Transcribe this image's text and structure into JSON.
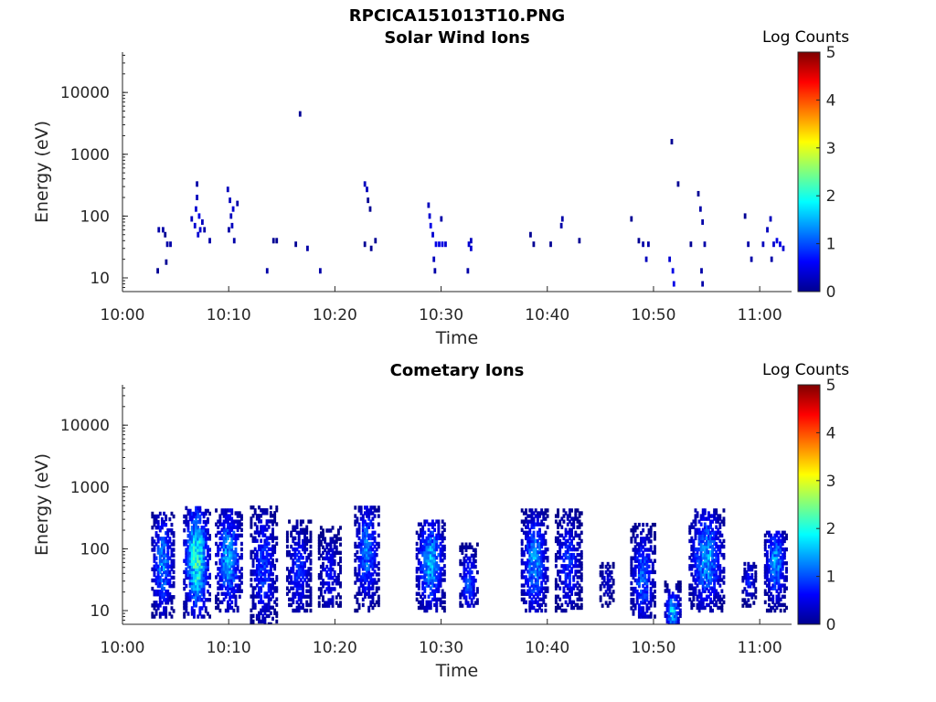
{
  "figure_title": "RPCICA151013T10.PNG",
  "chart_data": [
    {
      "type": "heatmap",
      "title": "Solar Wind Ions",
      "xlabel": "Time",
      "ylabel": "Energy (eV)",
      "x_ticks": [
        "10:00",
        "10:10",
        "10:20",
        "10:30",
        "10:40",
        "10:50",
        "11:00"
      ],
      "y_ticks": [
        "10",
        "100",
        "1000",
        "10000"
      ],
      "y_scale": "log",
      "ylim": [
        6,
        45000
      ],
      "xlim_minutes": [
        0,
        63
      ],
      "colorbar": {
        "label": "Log Counts",
        "range": [
          0,
          5
        ],
        "ticks": [
          "0",
          "1",
          "2",
          "3",
          "4",
          "5"
        ],
        "colormap": "jet"
      },
      "note": "sparse low counts (~0-0.5) scattered 10:03-11:02, mostly 10-300 eV",
      "cells": [
        [
          3.3,
          13,
          0.1
        ],
        [
          3.4,
          60,
          0.2
        ],
        [
          3.8,
          60,
          0.2
        ],
        [
          4.0,
          50,
          0.1
        ],
        [
          4.1,
          18,
          0.1
        ],
        [
          4.2,
          35,
          0.2
        ],
        [
          4.5,
          35,
          0.2
        ],
        [
          6.5,
          90,
          0.3
        ],
        [
          6.8,
          70,
          0.4
        ],
        [
          6.9,
          130,
          0.4
        ],
        [
          7.0,
          200,
          0.3
        ],
        [
          7.1,
          50,
          0.4
        ],
        [
          7.2,
          100,
          0.5
        ],
        [
          7.3,
          60,
          0.4
        ],
        [
          7.5,
          80,
          0.3
        ],
        [
          7.7,
          60,
          0.2
        ],
        [
          7.0,
          330,
          0.2
        ],
        [
          8.2,
          40,
          0.2
        ],
        [
          9.9,
          270,
          0.3
        ],
        [
          10.1,
          180,
          0.3
        ],
        [
          10.2,
          100,
          0.3
        ],
        [
          10.4,
          130,
          0.4
        ],
        [
          10.3,
          70,
          0.3
        ],
        [
          10.5,
          40,
          0.2
        ],
        [
          10.8,
          160,
          0.2
        ],
        [
          10.0,
          60,
          0.2
        ],
        [
          13.6,
          13,
          0.2
        ],
        [
          14.2,
          40,
          0.1
        ],
        [
          14.5,
          40,
          0.1
        ],
        [
          16.7,
          4500,
          0.1
        ],
        [
          16.3,
          35,
          0.1
        ],
        [
          17.4,
          30,
          0.2
        ],
        [
          18.6,
          13,
          0.2
        ],
        [
          22.8,
          330,
          0.3
        ],
        [
          23.0,
          270,
          0.3
        ],
        [
          23.1,
          180,
          0.1
        ],
        [
          23.3,
          130,
          0.1
        ],
        [
          22.8,
          35,
          0.1
        ],
        [
          23.4,
          30,
          0.1
        ],
        [
          23.8,
          40,
          0.1
        ],
        [
          28.8,
          150,
          0.3
        ],
        [
          28.9,
          100,
          0.4
        ],
        [
          29.0,
          70,
          0.5
        ],
        [
          29.2,
          50,
          0.4
        ],
        [
          29.5,
          35,
          0.5
        ],
        [
          29.8,
          35,
          0.5
        ],
        [
          30.1,
          35,
          0.5
        ],
        [
          30.4,
          35,
          0.4
        ],
        [
          29.3,
          20,
          0.3
        ],
        [
          29.4,
          13,
          0.2
        ],
        [
          30.0,
          90,
          0.2
        ],
        [
          32.6,
          35,
          0.4
        ],
        [
          32.8,
          30,
          0.4
        ],
        [
          32.5,
          13,
          0.2
        ],
        [
          32.8,
          40,
          0.3
        ],
        [
          38.4,
          50,
          0.1
        ],
        [
          38.7,
          35,
          0.1
        ],
        [
          40.3,
          35,
          0.1
        ],
        [
          41.3,
          70,
          0.2
        ],
        [
          41.4,
          90,
          0.2
        ],
        [
          43.0,
          40,
          0.1
        ],
        [
          47.9,
          90,
          0.1
        ],
        [
          48.6,
          40,
          0.1
        ],
        [
          49.0,
          35,
          0.2
        ],
        [
          49.3,
          20,
          0.3
        ],
        [
          49.5,
          35,
          0.2
        ],
        [
          51.5,
          20,
          0.4
        ],
        [
          51.8,
          13,
          0.5
        ],
        [
          51.9,
          8,
          0.5
        ],
        [
          51.7,
          1600,
          0.1
        ],
        [
          52.3,
          330,
          0.1
        ],
        [
          53.5,
          35,
          0.1
        ],
        [
          54.2,
          230,
          0.1
        ],
        [
          54.4,
          130,
          0.2
        ],
        [
          54.6,
          80,
          0.2
        ],
        [
          54.8,
          35,
          0.2
        ],
        [
          54.5,
          13,
          0.2
        ],
        [
          54.6,
          8,
          0.2
        ],
        [
          58.6,
          100,
          0.1
        ],
        [
          58.9,
          35,
          0.2
        ],
        [
          59.2,
          20,
          0.2
        ],
        [
          60.3,
          35,
          0.3
        ],
        [
          60.7,
          60,
          0.3
        ],
        [
          61.0,
          90,
          0.3
        ],
        [
          61.3,
          35,
          0.4
        ],
        [
          61.6,
          40,
          0.5
        ],
        [
          61.9,
          35,
          0.5
        ],
        [
          62.2,
          30,
          0.4
        ],
        [
          61.1,
          20,
          0.2
        ]
      ]
    },
    {
      "type": "heatmap",
      "title": "Cometary Ions",
      "xlabel": "Time",
      "ylabel": "Energy (eV)",
      "x_ticks": [
        "10:00",
        "10:10",
        "10:20",
        "10:30",
        "10:40",
        "10:50",
        "11:00"
      ],
      "y_ticks": [
        "10",
        "100",
        "1000",
        "10000"
      ],
      "y_scale": "log",
      "ylim": [
        6,
        45000
      ],
      "xlim_minutes": [
        0,
        63
      ],
      "colorbar": {
        "label": "Log Counts",
        "range": [
          0,
          5
        ],
        "ticks": [
          "0",
          "1",
          "2",
          "3",
          "4",
          "5"
        ],
        "colormap": "jet"
      },
      "note": "bursts of counts (up to ~2.5) at 10-500 eV, peaks near 30-80 eV",
      "bursts": [
        {
          "t": 3.8,
          "w": 2.0,
          "emin": 8,
          "emax": 400,
          "peak": 1.4,
          "epk": 60
        },
        {
          "t": 7.0,
          "w": 2.4,
          "emin": 8,
          "emax": 500,
          "peak": 2.3,
          "epk": 70
        },
        {
          "t": 10.0,
          "w": 2.4,
          "emin": 10,
          "emax": 450,
          "peak": 1.6,
          "epk": 70
        },
        {
          "t": 13.3,
          "w": 2.4,
          "emin": 6,
          "emax": 500,
          "peak": 1.0,
          "epk": 50
        },
        {
          "t": 16.6,
          "w": 2.2,
          "emin": 10,
          "emax": 300,
          "peak": 0.9,
          "epk": 45
        },
        {
          "t": 19.5,
          "w": 2.0,
          "emin": 12,
          "emax": 250,
          "peak": 0.7,
          "epk": 40
        },
        {
          "t": 23.0,
          "w": 2.2,
          "emin": 10,
          "emax": 500,
          "peak": 1.3,
          "epk": 90
        },
        {
          "t": 29.0,
          "w": 2.6,
          "emin": 10,
          "emax": 300,
          "peak": 1.7,
          "epk": 60
        },
        {
          "t": 32.6,
          "w": 1.6,
          "emin": 12,
          "emax": 120,
          "peak": 1.2,
          "epk": 30
        },
        {
          "t": 38.8,
          "w": 2.4,
          "emin": 10,
          "emax": 450,
          "peak": 1.5,
          "epk": 60
        },
        {
          "t": 42.0,
          "w": 2.4,
          "emin": 10,
          "emax": 450,
          "peak": 0.9,
          "epk": 60
        },
        {
          "t": 45.6,
          "w": 1.2,
          "emin": 12,
          "emax": 60,
          "peak": 0.5,
          "epk": 30
        },
        {
          "t": 49.0,
          "w": 2.2,
          "emin": 8,
          "emax": 250,
          "peak": 1.2,
          "epk": 35
        },
        {
          "t": 51.8,
          "w": 1.4,
          "emin": 6,
          "emax": 30,
          "peak": 1.8,
          "epk": 10
        },
        {
          "t": 55.0,
          "w": 3.2,
          "emin": 10,
          "emax": 450,
          "peak": 1.5,
          "epk": 70
        },
        {
          "t": 59.0,
          "w": 1.2,
          "emin": 12,
          "emax": 60,
          "peak": 0.8,
          "epk": 30
        },
        {
          "t": 61.5,
          "w": 2.0,
          "emin": 10,
          "emax": 200,
          "peak": 1.5,
          "epk": 60
        }
      ]
    }
  ]
}
